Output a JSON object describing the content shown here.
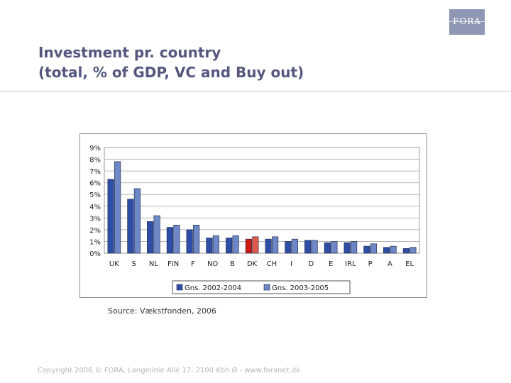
{
  "logo": {
    "text": "FORA"
  },
  "title": {
    "line1": "Investment pr. country",
    "line2": "(total, % of GDP, VC and Buy out)"
  },
  "source": "Source: Vækstfonden, 2006",
  "footer": "Copyright 2006 © FORA, Langelinie Allé 17, 2100 Kbh Ø - www.foranet.dk",
  "colors": {
    "series1": "#2e4ea6",
    "series2": "#6d87c7",
    "highlight": "#cc1a10",
    "highlight2": "#e05a4a",
    "title": "#55577f"
  },
  "chart_data": {
    "type": "bar",
    "title": "",
    "xlabel": "",
    "ylabel": "",
    "categories": [
      "UK",
      "S",
      "NL",
      "FIN",
      "F",
      "NO",
      "B",
      "DK",
      "CH",
      "I",
      "D",
      "E",
      "IRL",
      "P",
      "A",
      "EL"
    ],
    "series": [
      {
        "name": "Gns. 2002-2004",
        "values": [
          6.3,
          4.6,
          2.7,
          2.2,
          2.0,
          1.3,
          1.3,
          1.2,
          1.2,
          1.0,
          1.1,
          0.9,
          0.9,
          0.6,
          0.5,
          0.4
        ]
      },
      {
        "name": "Gns. 2003-2005",
        "values": [
          7.8,
          5.5,
          3.2,
          2.4,
          2.4,
          1.5,
          1.5,
          1.4,
          1.4,
          1.2,
          1.1,
          1.0,
          1.0,
          0.8,
          0.6,
          0.5
        ]
      }
    ],
    "highlight_category": "DK",
    "ylim": [
      0,
      9
    ],
    "yticks": [
      "0%",
      "1%",
      "2%",
      "3%",
      "4%",
      "5%",
      "6%",
      "7%",
      "8%",
      "9%"
    ],
    "grid": true,
    "legend_position": "bottom"
  }
}
